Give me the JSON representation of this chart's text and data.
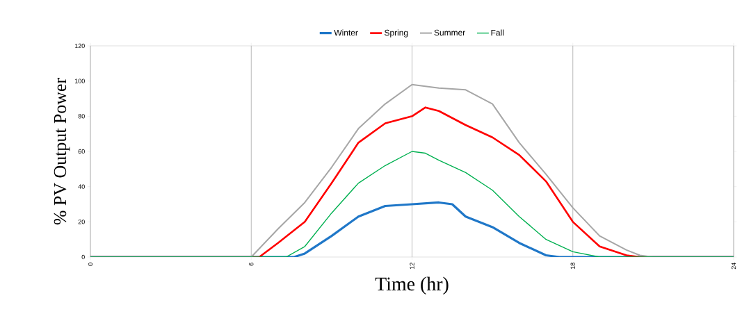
{
  "chart_data": {
    "type": "line",
    "xlabel": "Time (hr)",
    "ylabel": "% PV Output Power",
    "xlim": [
      0,
      24
    ],
    "ylim": [
      0,
      120
    ],
    "xticks": [
      0,
      6,
      12,
      18,
      24
    ],
    "yticks": [
      0,
      20,
      40,
      60,
      80,
      100,
      120
    ],
    "grid": "x",
    "legend": "top",
    "series": [
      {
        "name": "Winter",
        "color": "#1f77c8",
        "x": [
          0,
          7.6,
          8,
          9,
          10,
          11,
          12,
          13,
          13.5,
          14,
          15,
          16,
          17,
          17.5,
          24
        ],
        "values": [
          0,
          0,
          2,
          12,
          23,
          29,
          30,
          31,
          30,
          23,
          17,
          8,
          1,
          0,
          0
        ]
      },
      {
        "name": "Spring",
        "color": "#ff0000",
        "x": [
          0,
          6.3,
          7,
          8,
          9,
          10,
          11,
          12,
          12.5,
          13,
          14,
          15,
          16,
          17,
          18,
          19,
          20,
          20.5,
          24
        ],
        "values": [
          0,
          0,
          8,
          20,
          42,
          65,
          76,
          80,
          85,
          83,
          75,
          68,
          58,
          43,
          20,
          6,
          1,
          0,
          0
        ]
      },
      {
        "name": "Summer",
        "color": "#a6a6a6",
        "x": [
          0,
          6,
          7,
          8,
          9,
          10,
          11,
          12,
          13,
          14,
          15,
          16,
          17,
          18,
          19,
          20,
          20.5,
          21,
          24
        ],
        "values": [
          0,
          0,
          16,
          31,
          51,
          73,
          87,
          98,
          96,
          95,
          87,
          65,
          47,
          28,
          12,
          4,
          1,
          0,
          0
        ]
      },
      {
        "name": "Fall",
        "color": "#00b050",
        "x": [
          0,
          7.3,
          8,
          9,
          10,
          11,
          12,
          12.5,
          13,
          14,
          15,
          16,
          17,
          18,
          19,
          24
        ],
        "values": [
          0,
          0,
          6,
          25,
          42,
          52,
          60,
          59,
          55,
          48,
          38,
          23,
          10,
          3,
          0,
          0
        ]
      }
    ]
  }
}
